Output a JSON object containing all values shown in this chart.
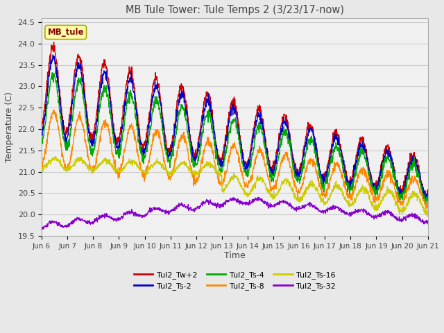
{
  "title": "MB Tule Tower: Tule Temps 2 (3/23/17-now)",
  "xlabel": "Time",
  "ylabel": "Temperature (C)",
  "ylim": [
    19.5,
    24.6
  ],
  "yticks": [
    19.5,
    20.0,
    20.5,
    21.0,
    21.5,
    22.0,
    22.5,
    23.0,
    23.5,
    24.0,
    24.5
  ],
  "x_labels": [
    "Jun 6",
    "Jun 7",
    "Jun 8",
    "Jun 9",
    "Jun 10",
    "Jun 11",
    "Jun 12",
    "Jun 13",
    "Jun 14",
    "Jun 15",
    "Jun 16",
    "Jun 17",
    "Jun 18",
    "Jun 19",
    "Jun 20",
    "Jun 21"
  ],
  "legend_label": "MB_tule",
  "series_names": [
    "Tul2_Tw+2",
    "Tul2_Ts-2",
    "Tul2_Ts-4",
    "Tul2_Ts-8",
    "Tul2_Ts-16",
    "Tul2_Ts-32"
  ],
  "series_colors": [
    "#cc0000",
    "#0000cc",
    "#00aa00",
    "#ff8800",
    "#cccc00",
    "#8800cc"
  ],
  "background_color": "#e8e8e8",
  "plot_bg_color": "#f0f0f0",
  "grid_color": "#cccccc",
  "title_color": "#444444"
}
